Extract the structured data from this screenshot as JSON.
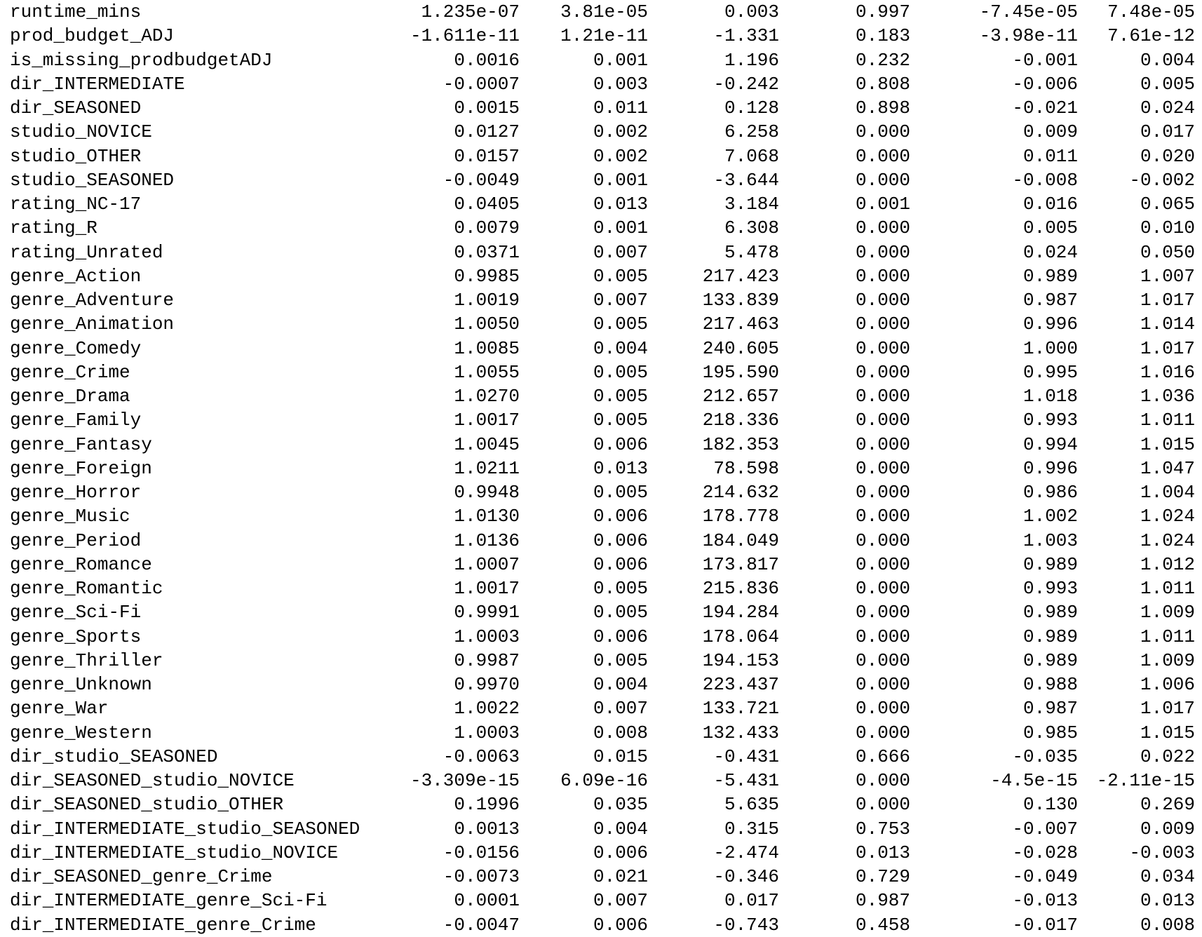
{
  "rows": [
    [
      "runtime_mins",
      "1.235e-07",
      "3.81e-05",
      "0.003",
      "0.997",
      "-7.45e-05",
      "7.48e-05"
    ],
    [
      "prod_budget_ADJ",
      "-1.611e-11",
      "1.21e-11",
      "-1.331",
      "0.183",
      "-3.98e-11",
      "7.61e-12"
    ],
    [
      "is_missing_prodbudgetADJ",
      "0.0016",
      "0.001",
      "1.196",
      "0.232",
      "-0.001",
      "0.004"
    ],
    [
      "dir_INTERMEDIATE",
      "-0.0007",
      "0.003",
      "-0.242",
      "0.808",
      "-0.006",
      "0.005"
    ],
    [
      "dir_SEASONED",
      "0.0015",
      "0.011",
      "0.128",
      "0.898",
      "-0.021",
      "0.024"
    ],
    [
      "studio_NOVICE",
      "0.0127",
      "0.002",
      "6.258",
      "0.000",
      "0.009",
      "0.017"
    ],
    [
      "studio_OTHER",
      "0.0157",
      "0.002",
      "7.068",
      "0.000",
      "0.011",
      "0.020"
    ],
    [
      "studio_SEASONED",
      "-0.0049",
      "0.001",
      "-3.644",
      "0.000",
      "-0.008",
      "-0.002"
    ],
    [
      "rating_NC-17",
      "0.0405",
      "0.013",
      "3.184",
      "0.001",
      "0.016",
      "0.065"
    ],
    [
      "rating_R",
      "0.0079",
      "0.001",
      "6.308",
      "0.000",
      "0.005",
      "0.010"
    ],
    [
      "rating_Unrated",
      "0.0371",
      "0.007",
      "5.478",
      "0.000",
      "0.024",
      "0.050"
    ],
    [
      "genre_Action",
      "0.9985",
      "0.005",
      "217.423",
      "0.000",
      "0.989",
      "1.007"
    ],
    [
      "genre_Adventure",
      "1.0019",
      "0.007",
      "133.839",
      "0.000",
      "0.987",
      "1.017"
    ],
    [
      "genre_Animation",
      "1.0050",
      "0.005",
      "217.463",
      "0.000",
      "0.996",
      "1.014"
    ],
    [
      "genre_Comedy",
      "1.0085",
      "0.004",
      "240.605",
      "0.000",
      "1.000",
      "1.017"
    ],
    [
      "genre_Crime",
      "1.0055",
      "0.005",
      "195.590",
      "0.000",
      "0.995",
      "1.016"
    ],
    [
      "genre_Drama",
      "1.0270",
      "0.005",
      "212.657",
      "0.000",
      "1.018",
      "1.036"
    ],
    [
      "genre_Family",
      "1.0017",
      "0.005",
      "218.336",
      "0.000",
      "0.993",
      "1.011"
    ],
    [
      "genre_Fantasy",
      "1.0045",
      "0.006",
      "182.353",
      "0.000",
      "0.994",
      "1.015"
    ],
    [
      "genre_Foreign",
      "1.0211",
      "0.013",
      "78.598",
      "0.000",
      "0.996",
      "1.047"
    ],
    [
      "genre_Horror",
      "0.9948",
      "0.005",
      "214.632",
      "0.000",
      "0.986",
      "1.004"
    ],
    [
      "genre_Music",
      "1.0130",
      "0.006",
      "178.778",
      "0.000",
      "1.002",
      "1.024"
    ],
    [
      "genre_Period",
      "1.0136",
      "0.006",
      "184.049",
      "0.000",
      "1.003",
      "1.024"
    ],
    [
      "genre_Romance",
      "1.0007",
      "0.006",
      "173.817",
      "0.000",
      "0.989",
      "1.012"
    ],
    [
      "genre_Romantic",
      "1.0017",
      "0.005",
      "215.836",
      "0.000",
      "0.993",
      "1.011"
    ],
    [
      "genre_Sci-Fi",
      "0.9991",
      "0.005",
      "194.284",
      "0.000",
      "0.989",
      "1.009"
    ],
    [
      "genre_Sports",
      "1.0003",
      "0.006",
      "178.064",
      "0.000",
      "0.989",
      "1.011"
    ],
    [
      "genre_Thriller",
      "0.9987",
      "0.005",
      "194.153",
      "0.000",
      "0.989",
      "1.009"
    ],
    [
      "genre_Unknown",
      "0.9970",
      "0.004",
      "223.437",
      "0.000",
      "0.988",
      "1.006"
    ],
    [
      "genre_War",
      "1.0022",
      "0.007",
      "133.721",
      "0.000",
      "0.987",
      "1.017"
    ],
    [
      "genre_Western",
      "1.0003",
      "0.008",
      "132.433",
      "0.000",
      "0.985",
      "1.015"
    ],
    [
      "dir_studio_SEASONED",
      "-0.0063",
      "0.015",
      "-0.431",
      "0.666",
      "-0.035",
      "0.022"
    ],
    [
      "dir_SEASONED_studio_NOVICE",
      "-3.309e-15",
      "6.09e-16",
      "-5.431",
      "0.000",
      "-4.5e-15",
      "-2.11e-15"
    ],
    [
      "dir_SEASONED_studio_OTHER",
      "0.1996",
      "0.035",
      "5.635",
      "0.000",
      "0.130",
      "0.269"
    ],
    [
      "dir_INTERMEDIATE_studio_SEASONED",
      "0.0013",
      "0.004",
      "0.315",
      "0.753",
      "-0.007",
      "0.009"
    ],
    [
      "dir_INTERMEDIATE_studio_NOVICE",
      "-0.0156",
      "0.006",
      "-2.474",
      "0.013",
      "-0.028",
      "-0.003"
    ],
    [
      "dir_SEASONED_genre_Crime",
      "-0.0073",
      "0.021",
      "-0.346",
      "0.729",
      "-0.049",
      "0.034"
    ],
    [
      "dir_INTERMEDIATE_genre_Sci-Fi",
      "0.0001",
      "0.007",
      "0.017",
      "0.987",
      "-0.013",
      "0.013"
    ],
    [
      "dir_INTERMEDIATE_genre_Crime",
      "-0.0047",
      "0.006",
      "-0.743",
      "0.458",
      "-0.017",
      "0.008"
    ]
  ]
}
